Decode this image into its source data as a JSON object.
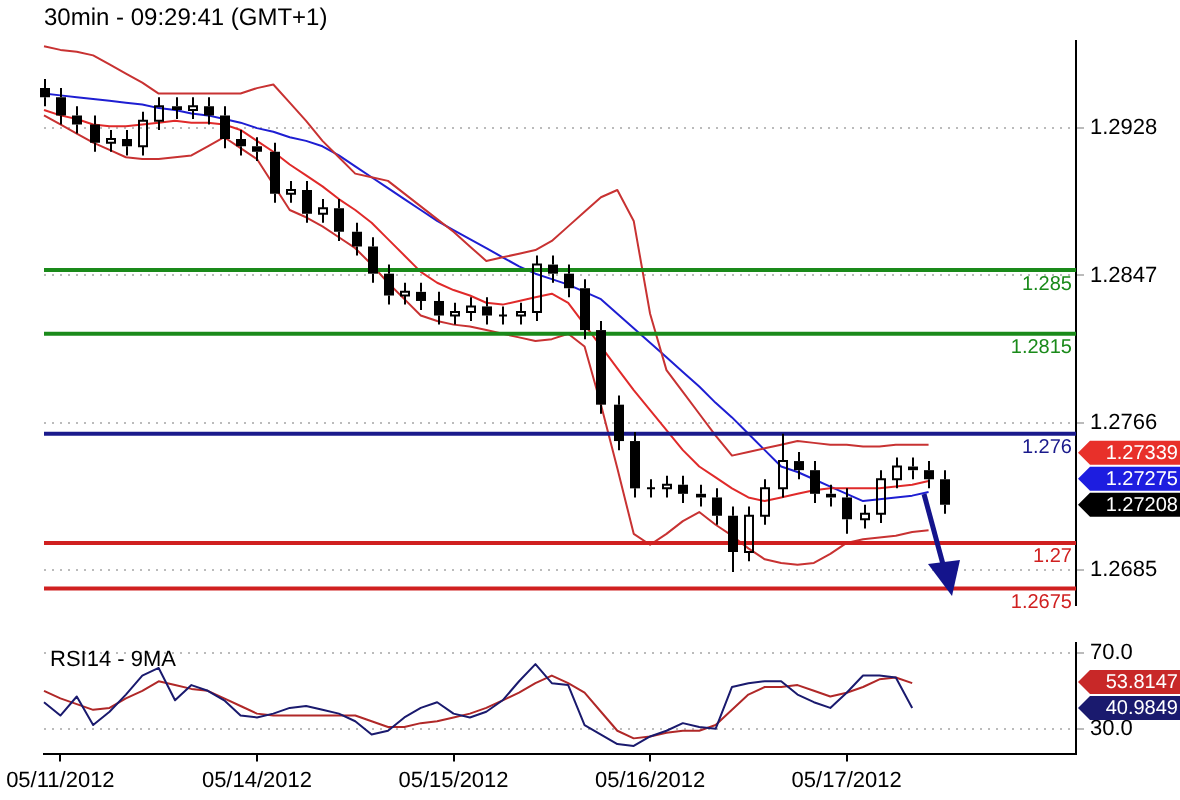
{
  "chart_data": [
    {
      "type": "candlestick",
      "title": "30min - 09:29:41 (GMT+1)",
      "color": "#000000",
      "categories": [
        null,
        null,
        null,
        null,
        null,
        null,
        null,
        null,
        null,
        null,
        null,
        null,
        null,
        null,
        null,
        null,
        null,
        null,
        null,
        null,
        null,
        null,
        null,
        null,
        null,
        null,
        null,
        null,
        null,
        null,
        null,
        null,
        null,
        null,
        null,
        null,
        null,
        null,
        null,
        null,
        null,
        null,
        null,
        null,
        null,
        null,
        null,
        null,
        null,
        null,
        null,
        null,
        null,
        null,
        null,
        null,
        null,
        null,
        null,
        null,
        null,
        null,
        null,
        null
      ],
      "ohlc": [
        [
          1.295,
          1.2955,
          1.294,
          1.2945
        ],
        [
          1.2945,
          1.295,
          1.293,
          1.2935
        ],
        [
          1.2935,
          1.294,
          1.2925,
          1.293
        ],
        [
          1.293,
          1.2935,
          1.2915,
          1.292
        ],
        [
          1.292,
          1.2927,
          1.2915,
          1.2922
        ],
        [
          1.2922,
          1.2927,
          1.2913,
          1.2918
        ],
        [
          1.2918,
          1.2937,
          1.2913,
          1.2932
        ],
        [
          1.2932,
          1.2945,
          1.2927,
          1.294
        ],
        [
          1.294,
          1.2945,
          1.2933,
          1.2938
        ],
        [
          1.2938,
          1.2945,
          1.2933,
          1.294
        ],
        [
          1.294,
          1.2945,
          1.293,
          1.2935
        ],
        [
          1.2935,
          1.294,
          1.2917,
          1.2922
        ],
        [
          1.2922,
          1.2927,
          1.2913,
          1.2918
        ],
        [
          1.2918,
          1.2923,
          1.291,
          1.2915
        ],
        [
          1.2915,
          1.292,
          1.2887,
          1.2892
        ],
        [
          1.2892,
          1.2899,
          1.2887,
          1.2894
        ],
        [
          1.2894,
          1.2899,
          1.2876,
          1.2881
        ],
        [
          1.2881,
          1.2889,
          1.2876,
          1.2884
        ],
        [
          1.2884,
          1.2889,
          1.2866,
          1.2871
        ],
        [
          1.2871,
          1.2876,
          1.2858,
          1.2863
        ],
        [
          1.2863,
          1.2868,
          1.2843,
          1.2848
        ],
        [
          1.2848,
          1.2853,
          1.2831,
          1.2836
        ],
        [
          1.2836,
          1.2843,
          1.2831,
          1.2838
        ],
        [
          1.2838,
          1.2843,
          1.2828,
          1.2833
        ],
        [
          1.2833,
          1.2838,
          1.282,
          1.2825
        ],
        [
          1.2825,
          1.2832,
          1.282,
          1.2827
        ],
        [
          1.2827,
          1.2835,
          1.2822,
          1.283
        ],
        [
          1.283,
          1.2835,
          1.282,
          1.2825
        ],
        [
          1.2825,
          1.283,
          1.282,
          1.2825
        ],
        [
          1.2825,
          1.2832,
          1.282,
          1.2827
        ],
        [
          1.2827,
          1.2858,
          1.2822,
          1.2853
        ],
        [
          1.2853,
          1.2858,
          1.2843,
          1.2848
        ],
        [
          1.2848,
          1.2853,
          1.2835,
          1.284
        ],
        [
          1.284,
          1.2845,
          1.2812,
          1.2817
        ],
        [
          1.2817,
          1.2822,
          1.2771,
          1.2776
        ],
        [
          1.2776,
          1.2781,
          1.2751,
          1.2756
        ],
        [
          1.2756,
          1.2761,
          1.2725,
          1.273
        ],
        [
          1.273,
          1.2735,
          1.2725,
          1.273
        ],
        [
          1.273,
          1.2737,
          1.2725,
          1.2732
        ],
        [
          1.2732,
          1.2737,
          1.2722,
          1.2727
        ],
        [
          1.2727,
          1.2732,
          1.272,
          1.2725
        ],
        [
          1.2725,
          1.273,
          1.271,
          1.2715
        ],
        [
          1.2715,
          1.272,
          1.2684,
          1.2695
        ],
        [
          1.2695,
          1.272,
          1.269,
          1.2715
        ],
        [
          1.2715,
          1.2735,
          1.271,
          1.273
        ],
        [
          1.273,
          1.276,
          1.2725,
          1.2745
        ],
        [
          1.2745,
          1.275,
          1.2735,
          1.274
        ],
        [
          1.274,
          1.2745,
          1.2722,
          1.2727
        ],
        [
          1.2727,
          1.2732,
          1.272,
          1.2725
        ],
        [
          1.2725,
          1.273,
          1.2705,
          1.2713
        ],
        [
          1.2713,
          1.2721,
          1.2708,
          1.2716
        ],
        [
          1.2716,
          1.274,
          1.2711,
          1.2735
        ],
        [
          1.2735,
          1.2747,
          1.273,
          1.2742
        ],
        [
          1.2742,
          1.2747,
          1.2735,
          1.274
        ],
        [
          1.274,
          1.2745,
          1.273,
          1.2735
        ],
        [
          1.2735,
          1.274,
          1.2716,
          1.2721
        ],
        null,
        null,
        null,
        null,
        null,
        null,
        null,
        null
      ],
      "annotations": [
        "1.27339",
        "1.27275",
        "1.27208"
      ],
      "series": [
        {
          "type": "line",
          "color": "#c83232",
          "values": [
            1.2973,
            1.2971,
            1.297,
            1.2968,
            1.2963,
            1.2958,
            1.2953,
            1.2947,
            1.2947,
            1.2947,
            1.2947,
            1.2947,
            1.2947,
            1.295,
            1.2952,
            1.2942,
            1.2932,
            1.2921,
            1.2912,
            1.2903,
            1.2901,
            1.2899,
            1.2892,
            1.2885,
            1.2878,
            1.2871,
            1.2863,
            1.2855,
            1.2857,
            1.2859,
            1.2861,
            1.2866,
            1.2874,
            1.2882,
            1.289,
            1.2894,
            1.2877,
            1.2826,
            1.2795,
            1.2783,
            1.2771,
            1.2759,
            1.2748,
            1.275,
            1.2752,
            1.2754,
            1.2756,
            1.2755,
            1.2754,
            1.2754,
            1.2753,
            1.2753,
            1.2754,
            1.2754,
            1.2754,
            null,
            null,
            null,
            null,
            null,
            null,
            null,
            null,
            null
          ]
        },
        {
          "type": "line",
          "color": "#c83232",
          "values": [
            1.2935,
            1.293,
            1.2925,
            1.292,
            1.2916,
            1.2912,
            1.2911,
            1.2911,
            1.2912,
            1.2913,
            1.2918,
            1.2923,
            1.2917,
            1.2911,
            1.2897,
            1.2883,
            1.2879,
            1.2874,
            1.2868,
            1.2862,
            1.2853,
            1.2843,
            1.2834,
            1.2825,
            1.2822,
            1.282,
            1.2819,
            1.2817,
            1.2815,
            1.2813,
            1.2811,
            1.2812,
            1.2815,
            1.2808,
            1.2776,
            1.2741,
            1.2705,
            1.2699,
            1.2705,
            1.2712,
            1.2717,
            1.271,
            1.2704,
            1.2697,
            1.2691,
            1.2689,
            1.2688,
            1.2689,
            1.2694,
            1.27,
            1.2702,
            1.2703,
            1.2704,
            1.2706,
            1.2707,
            null,
            null,
            null,
            null,
            null,
            null,
            null,
            null,
            null
          ]
        },
        {
          "type": "line",
          "color": "#e02a2a",
          "values": [
            1.2938,
            1.2935,
            1.2933,
            1.293,
            1.2929,
            1.2929,
            1.293,
            1.2931,
            1.2932,
            1.2931,
            1.2931,
            1.293,
            1.2927,
            1.2921,
            1.2915,
            1.2908,
            1.2902,
            1.2896,
            1.2889,
            1.2883,
            1.2876,
            1.2867,
            1.2858,
            1.2849,
            1.2843,
            1.2839,
            1.2836,
            1.2832,
            1.2831,
            1.2833,
            1.2835,
            1.2837,
            1.2832,
            1.282,
            1.2808,
            1.2796,
            1.2784,
            1.2773,
            1.2762,
            1.2751,
            1.2742,
            1.2736,
            1.273,
            1.2725,
            1.2723,
            1.2725,
            1.2727,
            1.2729,
            1.273,
            1.273,
            1.273,
            1.273,
            1.2731,
            1.2732,
            1.2734,
            null,
            null,
            null,
            null,
            null,
            null,
            null,
            null,
            null
          ]
        },
        {
          "type": "line",
          "color": "#1e1ed2",
          "values": [
            1.2947,
            1.2946,
            1.2945,
            1.2944,
            1.2943,
            1.2942,
            1.2941,
            1.2939,
            1.2938,
            1.2936,
            1.2935,
            1.2933,
            1.2931,
            1.2928,
            1.2926,
            1.2923,
            1.2921,
            1.2918,
            1.2913,
            1.2907,
            1.2901,
            1.2895,
            1.2889,
            1.2883,
            1.2877,
            1.2872,
            1.2867,
            1.2862,
            1.2857,
            1.2852,
            1.2848,
            1.2845,
            1.2842,
            1.2838,
            1.2834,
            1.2826,
            1.2818,
            1.281,
            1.2802,
            1.2794,
            1.2786,
            1.2777,
            1.2769,
            1.276,
            1.2751,
            1.2742,
            1.2739,
            1.2735,
            1.2731,
            1.2727,
            1.2723,
            1.2724,
            1.2725,
            1.2726,
            1.2728,
            null,
            null,
            null,
            null,
            null,
            null,
            null,
            null,
            null
          ]
        }
      ],
      "ref_lines": [
        {
          "axis": "y",
          "value": 1.285,
          "label": "1.285",
          "color": "#1a8a1a"
        },
        {
          "axis": "y",
          "value": 1.2815,
          "label": "1.2815",
          "color": "#1a8a1a"
        },
        {
          "axis": "y",
          "value": 1.276,
          "label": "1.276",
          "color": "#1a1a8c"
        },
        {
          "axis": "y",
          "value": 1.27,
          "label": "1.27",
          "color": "#d02020"
        },
        {
          "axis": "y",
          "value": 1.2675,
          "label": "1.2675",
          "color": "#d02020"
        }
      ],
      "ylim": [
        1.2666,
        1.2976
      ],
      "yticks": [
        1.2928,
        1.2847,
        1.2766,
        1.2685
      ],
      "grid": "y",
      "legend": false,
      "tick_labels": "y"
    },
    {
      "type": "line",
      "title": "RSI14 - 9MA",
      "categories": [
        null,
        "05/11/2012",
        null,
        null,
        null,
        null,
        null,
        null,
        null,
        null,
        null,
        null,
        null,
        "05/14/2012",
        null,
        null,
        null,
        null,
        null,
        null,
        null,
        null,
        null,
        null,
        null,
        "05/15/2012",
        null,
        null,
        null,
        null,
        null,
        null,
        null,
        null,
        null,
        null,
        null,
        "05/16/2012",
        null,
        null,
        null,
        null,
        null,
        null,
        null,
        null,
        null,
        null,
        null,
        "05/17/2012",
        null,
        null,
        null,
        null,
        null,
        null,
        null,
        null,
        null,
        null,
        null,
        null,
        null,
        null
      ],
      "series": [
        {
          "color": "#1a1a6e",
          "values": [
            44,
            37,
            47,
            32,
            39,
            48,
            58,
            62,
            45,
            53,
            50,
            45,
            37,
            36,
            38,
            41,
            42,
            40,
            38,
            34,
            27,
            29,
            36,
            41,
            44,
            38,
            36,
            39,
            45,
            55,
            64,
            54,
            53,
            32,
            27,
            22,
            21,
            26,
            29,
            33,
            31,
            30,
            52,
            54,
            55,
            55,
            48,
            44,
            41,
            49,
            58,
            58,
            57,
            41,
            null,
            null,
            null,
            null,
            null,
            null,
            null,
            null,
            null,
            null
          ]
        },
        {
          "color": "#b02828",
          "values": [
            50,
            46,
            43,
            40,
            41,
            46,
            50,
            55,
            53,
            51,
            50,
            46,
            42,
            38,
            37,
            37,
            37,
            37,
            37,
            37,
            34,
            31,
            31,
            33,
            34,
            36,
            38,
            41,
            45,
            49,
            54,
            58,
            54,
            49,
            39,
            29,
            25,
            26,
            28,
            29,
            29,
            32,
            40,
            48,
            52,
            52,
            53,
            50,
            47,
            49,
            52,
            56,
            57,
            54,
            null,
            null,
            null,
            null,
            null,
            null,
            null,
            null,
            null,
            null
          ]
        }
      ],
      "annotations": [
        "53.8147",
        "40.9849"
      ],
      "ylim": [
        17,
        75
      ],
      "yticks": [
        {
          "value": 70,
          "label": "70.0"
        },
        {
          "value": 30,
          "label": "30.0"
        }
      ],
      "grid": "y",
      "legend": false
    }
  ]
}
